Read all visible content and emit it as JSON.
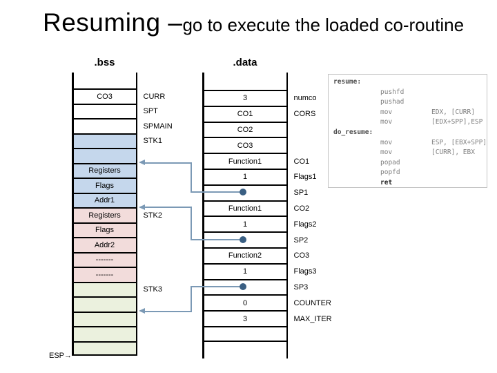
{
  "slide_title": {
    "main": "Resuming – ",
    "sub": "go to execute the loaded co-routine"
  },
  "colors": {
    "white": "#ffffff",
    "blue": "#c5d7ec",
    "pink": "#f2dcdb",
    "green": "#ebf1de",
    "connector_line": "#7b99b5",
    "connector_dot": "#3a5f83",
    "code_text": "#7f7f7f",
    "code_label": "#4d4d4d",
    "code_emphasis": "#262626"
  },
  "bss": {
    "header": ".bss",
    "esp_pointer": "ESP",
    "esp_arrow": "→",
    "rows": [
      {
        "value": "CO3",
        "label": "CURR",
        "fill": "white"
      },
      {
        "value": "",
        "label": "SPT",
        "fill": "white"
      },
      {
        "value": "",
        "label": "SPMAIN",
        "fill": "white"
      },
      {
        "value": "",
        "label": "STK1",
        "fill": "blue"
      },
      {
        "value": "",
        "label": "",
        "fill": "blue"
      },
      {
        "value": "Registers",
        "label": "",
        "fill": "blue"
      },
      {
        "value": "Flags",
        "label": "",
        "fill": "blue"
      },
      {
        "value": "Addr1",
        "label": "",
        "fill": "blue"
      },
      {
        "value": "Registers",
        "label": "STK2",
        "fill": "pink"
      },
      {
        "value": "Flags",
        "label": "",
        "fill": "pink"
      },
      {
        "value": "Addr2",
        "label": "",
        "fill": "pink"
      },
      {
        "value": "-------",
        "label": "",
        "fill": "pink"
      },
      {
        "value": "-------",
        "label": "",
        "fill": "pink"
      },
      {
        "value": "",
        "label": "STK3",
        "fill": "green"
      },
      {
        "value": "",
        "label": "",
        "fill": "green"
      },
      {
        "value": "",
        "label": "",
        "fill": "green"
      },
      {
        "value": "",
        "label": "",
        "fill": "green"
      },
      {
        "value": "",
        "label": "",
        "fill": "green"
      }
    ]
  },
  "data_section": {
    "header": ".data",
    "rows": [
      {
        "value": "3",
        "label": "numco",
        "fill": "white",
        "dot": false
      },
      {
        "value": "CO1",
        "label": "CORS",
        "fill": "white",
        "dot": false
      },
      {
        "value": "CO2",
        "label": "",
        "fill": "white",
        "dot": false
      },
      {
        "value": "CO3",
        "label": "",
        "fill": "white",
        "dot": false
      },
      {
        "value": "Function1",
        "label": "CO1",
        "fill": "white",
        "dot": false
      },
      {
        "value": "1",
        "label": "Flags1",
        "fill": "white",
        "dot": false
      },
      {
        "value": "",
        "label": "SP1",
        "fill": "white",
        "dot": true
      },
      {
        "value": "Function1",
        "label": "CO2",
        "fill": "white",
        "dot": false
      },
      {
        "value": "1",
        "label": "Flags2",
        "fill": "white",
        "dot": false
      },
      {
        "value": "",
        "label": "SP2",
        "fill": "white",
        "dot": true
      },
      {
        "value": "Function2",
        "label": "CO3",
        "fill": "white",
        "dot": false
      },
      {
        "value": "1",
        "label": "Flags3",
        "fill": "white",
        "dot": false
      },
      {
        "value": "",
        "label": "SP3",
        "fill": "white",
        "dot": true
      },
      {
        "value": "0",
        "label": "COUNTER",
        "fill": "white",
        "dot": false
      },
      {
        "value": "3",
        "label": "MAX_ITER",
        "fill": "white",
        "dot": false
      },
      {
        "value": "",
        "label": "",
        "fill": "white",
        "dot": false
      }
    ]
  },
  "connectors": [
    {
      "name": "sp1-to-stk1-frame",
      "data_row": 6,
      "bss_row": 5
    },
    {
      "name": "sp2-to-stk2-frame",
      "data_row": 9,
      "bss_row": 8
    },
    {
      "name": "sp3-to-stk3-frame",
      "data_row": 12,
      "bss_row": 15
    }
  ],
  "code_panel": {
    "lines": [
      {
        "label": "resume:",
        "mn": "",
        "op": "",
        "em": false
      },
      {
        "label": "",
        "mn": "pushfd",
        "op": "",
        "em": false
      },
      {
        "label": "",
        "mn": "pushad",
        "op": "",
        "em": false
      },
      {
        "label": "",
        "mn": "mov",
        "op": "EDX, [CURR]",
        "em": false
      },
      {
        "label": "",
        "mn": "mov",
        "op": "[EDX+SPP],ESP",
        "em": false
      },
      {
        "label": "do_resume:",
        "mn": "",
        "op": "",
        "em": false
      },
      {
        "label": "",
        "mn": "mov",
        "op": "ESP, [EBX+SPP]",
        "em": false
      },
      {
        "label": "",
        "mn": "mov",
        "op": "[CURR], EBX",
        "em": false
      },
      {
        "label": "",
        "mn": "popad",
        "op": "",
        "em": false
      },
      {
        "label": "",
        "mn": "popfd",
        "op": "",
        "em": false
      },
      {
        "label": "",
        "mn": "ret",
        "op": "",
        "em": true
      }
    ]
  }
}
